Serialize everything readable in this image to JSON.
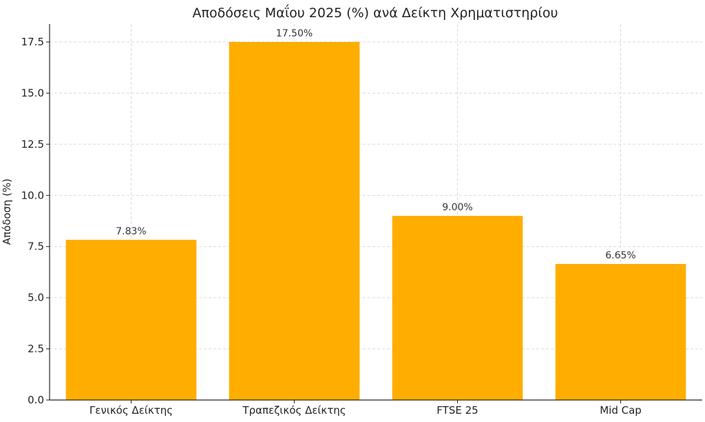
{
  "chart_data": {
    "type": "bar",
    "title": "Αποδόσεις Μαΐου 2025 (%) ανά Δείκτη Χρηματιστηρίου",
    "xlabel": "",
    "ylabel": "Απόδοση (%)",
    "categories": [
      "Γενικός Δείκτης",
      "Τραπεζικός Δείκτης",
      "FTSE 25",
      "Mid Cap"
    ],
    "values": [
      7.83,
      17.5,
      9.0,
      6.65
    ],
    "data_labels": [
      "7.83%",
      "17.50%",
      "9.00%",
      "6.65%"
    ],
    "ylim": [
      0,
      18.375
    ],
    "yticks": [
      0,
      2.5,
      5,
      7.5,
      10,
      12.5,
      15,
      17.5
    ],
    "ytick_labels": [
      "0.0",
      "2.5",
      "5.0",
      "7.5",
      "10.0",
      "12.5",
      "15.0",
      "17.5"
    ],
    "grid": true,
    "bar_color": "#FFAE00"
  }
}
